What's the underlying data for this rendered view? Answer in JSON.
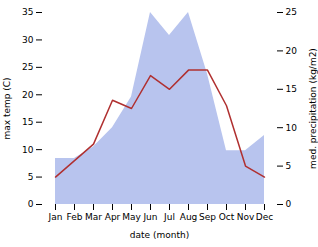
{
  "chart_data": {
    "type": "line",
    "categories": [
      "Jan",
      "Feb",
      "Mar",
      "Apr",
      "May",
      "Jun",
      "Jul",
      "Aug",
      "Sep",
      "Oct",
      "Nov",
      "Dec"
    ],
    "xlabel": "date (month)",
    "ylabel": "max temp (C)",
    "y2label": "med. precipitation (kg/m2)",
    "series": [
      {
        "type": "area",
        "axis": "y2",
        "color": "#b8c4ee",
        "values": [
          6,
          6,
          7.5,
          10,
          14,
          25,
          22,
          25,
          17,
          7,
          7,
          9
        ]
      },
      {
        "type": "line",
        "color": "#b03030",
        "values": [
          5,
          8,
          11,
          19,
          17.5,
          23.5,
          21,
          24.5,
          24.5,
          18,
          7,
          5
        ]
      }
    ],
    "ylim": [
      0,
      35
    ],
    "yticks": [
      0,
      5,
      10,
      15,
      20,
      25,
      30,
      35
    ],
    "y2lim": [
      0,
      25
    ],
    "y2ticks": [
      0,
      5,
      10,
      15,
      20,
      25
    ],
    "grid": false
  }
}
